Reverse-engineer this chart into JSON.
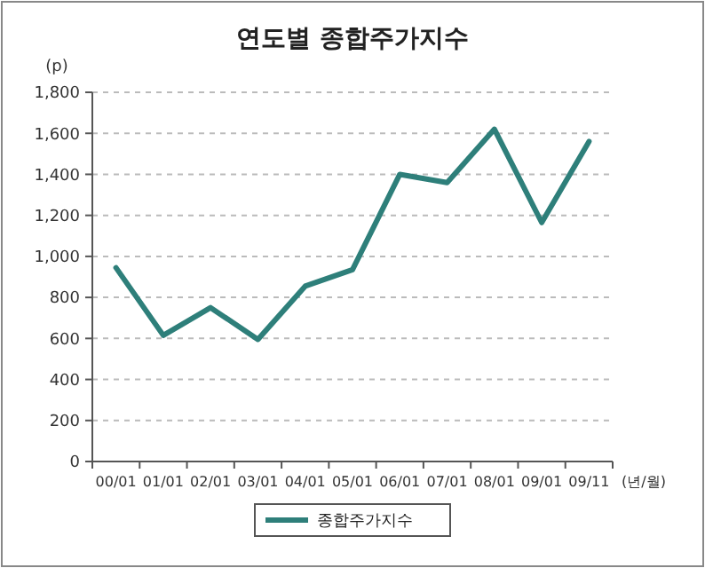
{
  "chart_data": {
    "type": "line",
    "title": "연도별 종합주가지수",
    "ylabel": "(p)",
    "xlabel": "(년/월)",
    "categories": [
      "00/01",
      "01/01",
      "02/01",
      "03/01",
      "04/01",
      "05/01",
      "06/01",
      "07/01",
      "08/01",
      "09/01",
      "09/11"
    ],
    "series": [
      {
        "name": "종합주가지수",
        "color": "#2e7f7a",
        "values": [
          945,
          615,
          750,
          595,
          855,
          935,
          1400,
          1360,
          1620,
          1165,
          1560
        ]
      }
    ],
    "ylim": [
      0,
      1800
    ],
    "yticks": [
      0,
      {
        "value": 200,
        "label": "200"
      },
      {
        "value": 400,
        "label": "400"
      },
      {
        "value": 600,
        "label": "600"
      },
      {
        "value": 800,
        "label": "800"
      },
      {
        "value": 1000,
        "label": "1,000"
      },
      {
        "value": 1200,
        "label": "1,200"
      },
      {
        "value": 1400,
        "label": "1,400"
      },
      {
        "value": 1600,
        "label": "1,600"
      },
      {
        "value": 1800,
        "label": "1,800"
      }
    ],
    "grid": "y",
    "legend": "bottom",
    "marker": "none",
    "line_style": "solid"
  }
}
